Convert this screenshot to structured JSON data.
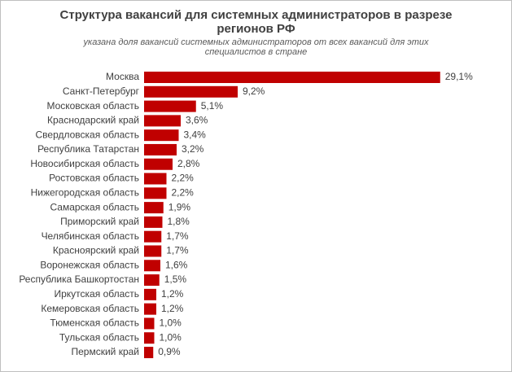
{
  "chart_data": {
    "type": "bar",
    "orientation": "horizontal",
    "title": "Структура  вакансий для системных администраторов в разрезе регионов РФ",
    "subtitle": "указана доля вакансий системных администраторов от всех вакансий для этих специалистов в стране",
    "categories": [
      "Москва",
      "Санкт-Петербург",
      "Московская область",
      "Краснодарский край",
      "Свердловская область",
      "Республика Татарстан",
      "Новосибирская область",
      "Ростовская область",
      "Нижегородская область",
      "Самарская область",
      "Приморский край",
      "Челябинская область",
      "Красноярский край",
      "Воронежская область",
      "Республика  Башкортостан",
      "Иркутская область",
      "Кемеровская область",
      "Тюменская область",
      "Тульская область",
      "Пермский край"
    ],
    "values": [
      29.1,
      9.2,
      5.1,
      3.6,
      3.4,
      3.2,
      2.8,
      2.2,
      2.2,
      1.9,
      1.8,
      1.7,
      1.7,
      1.6,
      1.5,
      1.2,
      1.2,
      1.0,
      1.0,
      0.9
    ],
    "value_labels": [
      "29,1%",
      "9,2%",
      "5,1%",
      "3,6%",
      "3,4%",
      "3,2%",
      "2,8%",
      "2,2%",
      "2,2%",
      "1,9%",
      "1,8%",
      "1,7%",
      "1,7%",
      "1,6%",
      "1,5%",
      "1,2%",
      "1,2%",
      "1,0%",
      "1,0%",
      "0,9%"
    ],
    "color": "#c00000"
  }
}
